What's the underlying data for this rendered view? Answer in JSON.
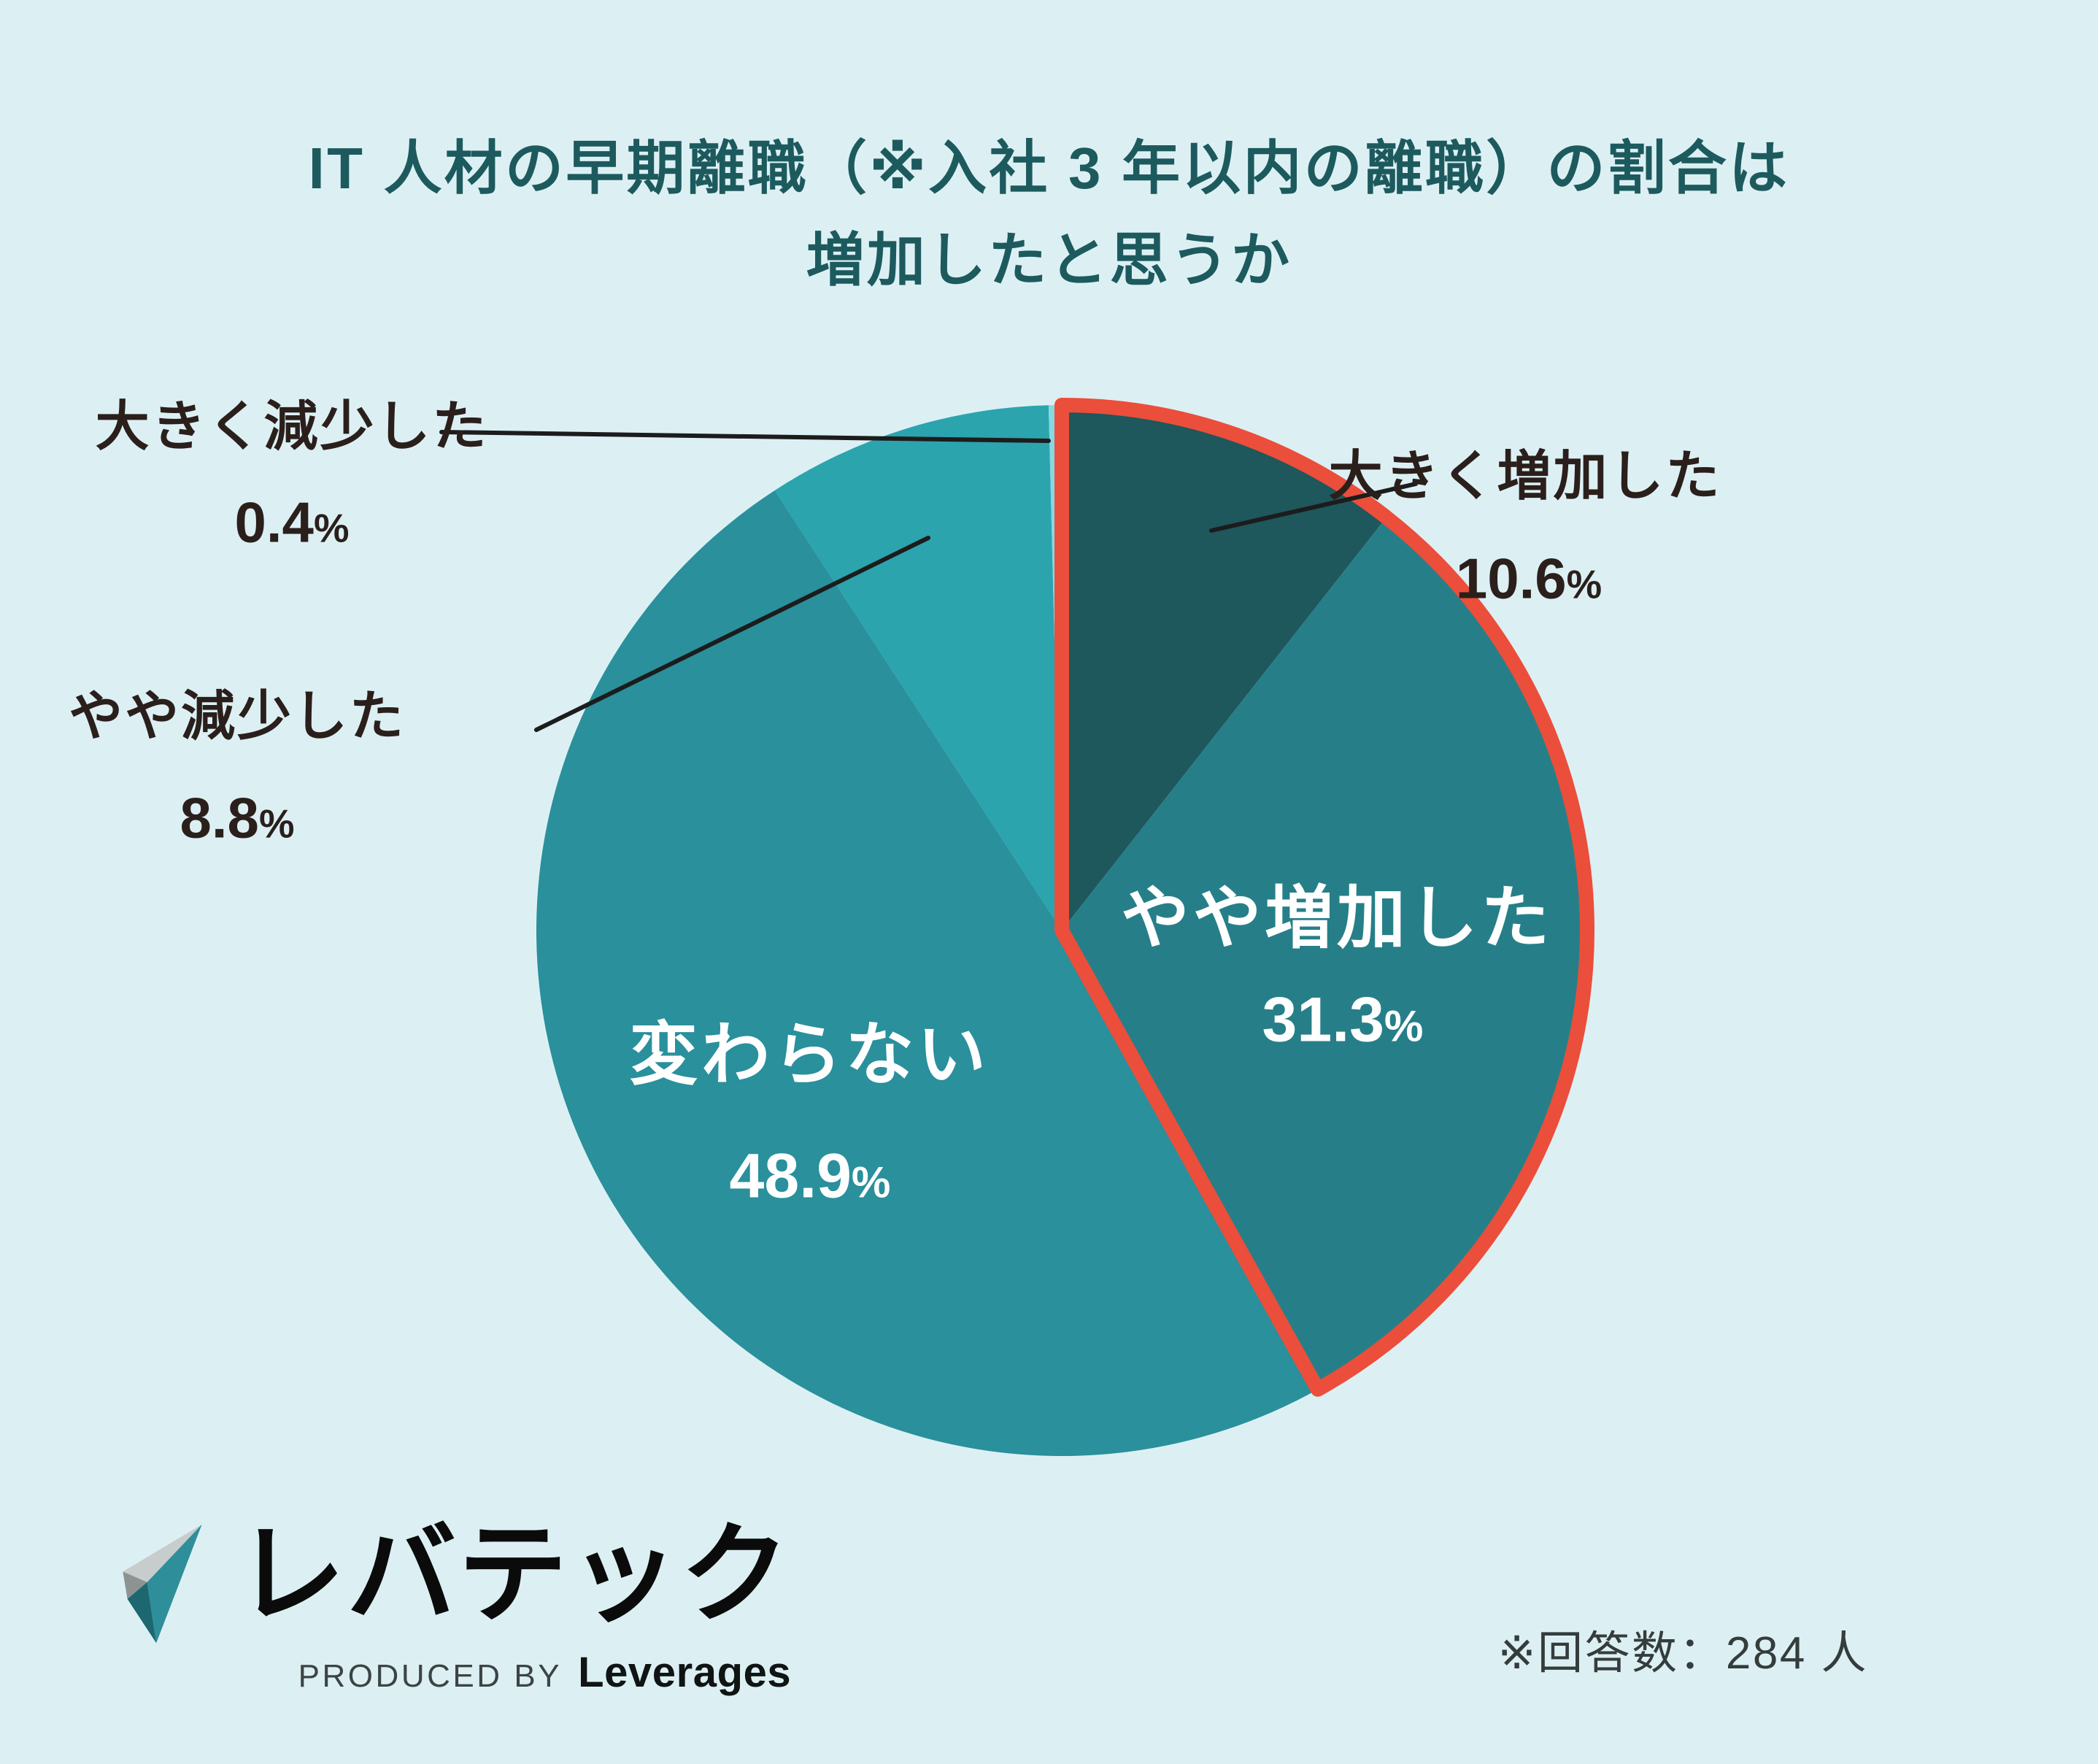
{
  "title": {
    "line1": "IT 人材の早期離職（※入社 3 年以内の離職）の割合は",
    "line2": "増加したと思うか"
  },
  "note": "※回答数：284 人",
  "logo": {
    "brand": "レバテック",
    "produced_by": "PRODUCED BY",
    "company": "Leverages"
  },
  "colors": {
    "background": "#DCF0F4",
    "title_text": "#1D5A5E",
    "outside_label_text": "#2B1F1B",
    "inside_label_text": "#FFFFFF",
    "highlight_outline": "#EB4E3A",
    "leader_line": "#1C1C1C",
    "note_text": "#353C3C"
  },
  "chart_data": {
    "type": "pie",
    "title": "IT 人材の早期離職（※入社 3 年以内の離職）の割合は増加したと思うか",
    "unit": "%",
    "start_angle_deg": 0,
    "direction": "clockwise",
    "legend_position": "none",
    "note": "※回答数：284 人",
    "highlight": {
      "segments": [
        "大きく増加した",
        "やや増加した"
      ],
      "combined_value": 41.9,
      "outline_color": "#EB4E3A"
    },
    "segments": [
      {
        "label": "大きく増加した",
        "value": 10.6,
        "color": "#1E575C",
        "label_placement": "outside",
        "highlighted": true
      },
      {
        "label": "やや増加した",
        "value": 31.3,
        "color": "#267F88",
        "label_placement": "inside",
        "highlighted": true
      },
      {
        "label": "変わらない",
        "value": 48.9,
        "color": "#29909C",
        "label_placement": "inside",
        "highlighted": false
      },
      {
        "label": "やや減少した",
        "value": 8.8,
        "color": "#2BA4AE",
        "label_placement": "outside",
        "highlighted": false
      },
      {
        "label": "大きく減少した",
        "value": 0.4,
        "color": "#86D8E3",
        "label_placement": "outside",
        "highlighted": false
      }
    ]
  }
}
